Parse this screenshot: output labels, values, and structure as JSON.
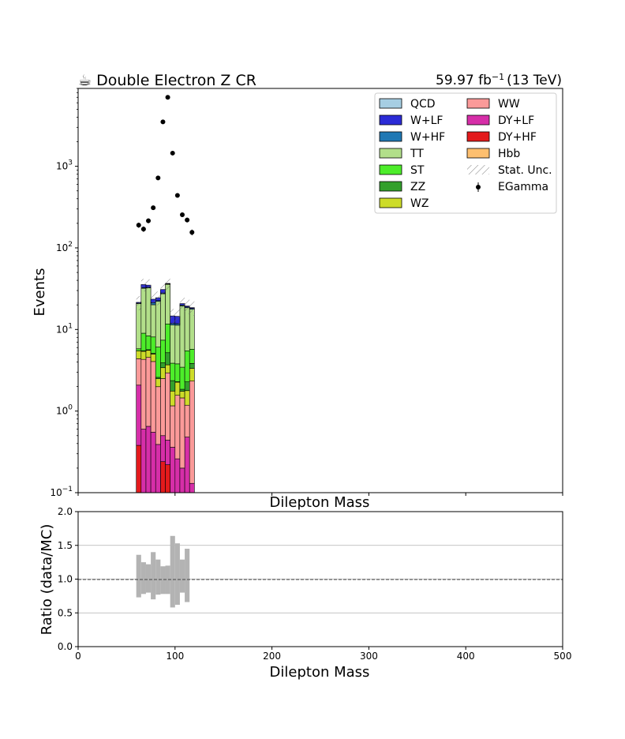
{
  "chart_data": {
    "type": "bar",
    "title": "☕ Double Electron Z CR",
    "lumi_label": "59.97 fb",
    "lumi_sup": "−1",
    "lumi_energy": "(13 TeV)",
    "main_panel": {
      "ylabel": "Events",
      "xlabel": "Dilepton Mass",
      "yscale": "log",
      "ylim": [
        0.1,
        9000
      ],
      "xlim": [
        0,
        500
      ],
      "y_tick_labels": [
        {
          "base": "10",
          "exp": "−1",
          "value": 0.1
        },
        {
          "base": "10",
          "exp": "0",
          "value": 1
        },
        {
          "base": "10",
          "exp": "1",
          "value": 10
        },
        {
          "base": "10",
          "exp": "2",
          "value": 100
        },
        {
          "base": "10",
          "exp": "3",
          "value": 1000
        }
      ],
      "x_ticks": [
        0,
        100,
        200,
        300,
        400,
        500
      ],
      "bin_edges": [
        60,
        65,
        70,
        75,
        80,
        85,
        90,
        95,
        100,
        105,
        110,
        115,
        120
      ],
      "stack": [
        {
          "name": "DY+HF",
          "color": "#e31a1c",
          "values": [
            0.38,
            0.1,
            0.1,
            0.1,
            0.1,
            0.24,
            0.22,
            0.1,
            0.1,
            0.1,
            0.1,
            0.1
          ]
        },
        {
          "name": "DY+LF",
          "color": "#d62ea8",
          "values": [
            1.7,
            0.5,
            0.55,
            0.45,
            0.29,
            0.26,
            0.22,
            0.26,
            0.16,
            0.1,
            0.38,
            0.03
          ]
        },
        {
          "name": "WW",
          "color": "#fb9a99",
          "values": [
            2.3,
            3.7,
            3.9,
            3.5,
            1.6,
            2.0,
            2.5,
            0.8,
            1.3,
            1.25,
            0.7,
            2.2
          ]
        },
        {
          "name": "WZ",
          "color": "#cddc29",
          "values": [
            1.1,
            1.1,
            1.0,
            0.95,
            0.5,
            0.9,
            0.75,
            0.6,
            0.7,
            0.3,
            0.6,
            1.0
          ]
        },
        {
          "name": "ZZ",
          "color": "#33a02c",
          "values": [
            0.02,
            0.1,
            0.1,
            0.1,
            0.1,
            0.5,
            1.5,
            0.6,
            0.03,
            0.1,
            0.5,
            0.5
          ]
        },
        {
          "name": "ST",
          "color": "#4ded2a",
          "values": [
            0.3,
            3.5,
            2.7,
            3.0,
            3.5,
            3.5,
            6.5,
            1.5,
            1.5,
            1.6,
            3.2,
            1.9
          ]
        },
        {
          "name": "TT",
          "color": "#b2df8a",
          "values": [
            15.0,
            23.0,
            24.0,
            12.0,
            16.0,
            20.0,
            24.0,
            7.5,
            7.5,
            16.0,
            13.0,
            12.0
          ]
        },
        {
          "name": "W+HF",
          "color": "#1f78b4",
          "values": [
            0.2,
            0.6,
            0.6,
            1.2,
            0.5,
            0.6,
            0.5,
            0.5,
            0.5,
            0.5,
            0.4,
            0.4
          ]
        },
        {
          "name": "W+LF",
          "color": "#2b2bd6",
          "values": [
            0.5,
            2.9,
            2.0,
            2.2,
            1.9,
            2.9,
            0.5,
            2.8,
            2.7,
            0.8,
            0.5,
            0.4
          ]
        },
        {
          "name": "QCD",
          "color": "#a6cee3",
          "values": [
            0.0,
            0.0,
            0.0,
            0.0,
            0.0,
            0.0,
            0.0,
            0.0,
            0.0,
            0.0,
            0.0,
            0.0
          ]
        },
        {
          "name": "Hbb",
          "color": "#fdbf6f",
          "values": [
            0.0,
            0.0,
            0.0,
            0.0,
            0.0,
            0.0,
            0.0,
            0.0,
            0.0,
            0.0,
            0.0,
            0.0
          ]
        }
      ],
      "data": {
        "name": "EGamma",
        "x": [
          62.5,
          67.5,
          72.5,
          77.5,
          82.5,
          87.5,
          92.5,
          97.5,
          102.5,
          107.5,
          112.5,
          117.5
        ],
        "y": [
          190,
          170,
          215,
          310,
          720,
          3500,
          7000,
          1450,
          440,
          255,
          220,
          155
        ]
      },
      "stat_unc_label": "Stat. Unc.",
      "legend_placement": "top-right",
      "legend_order": [
        "QCD",
        "WW",
        "W+LF",
        "DY+LF",
        "W+HF",
        "DY+HF",
        "TT",
        "Hbb",
        "ST",
        "Stat. Unc.",
        "ZZ",
        "EGamma",
        "WZ"
      ]
    },
    "ratio_panel": {
      "ylabel": "Ratio (data/MC)",
      "xlabel": "Dilepton Mass",
      "ylim": [
        0.0,
        2.0
      ],
      "xlim": [
        0,
        500
      ],
      "y_ticks": [
        "0.0",
        "0.5",
        "1.0",
        "1.5",
        "2.0"
      ],
      "x_ticks": [
        "0",
        "100",
        "200",
        "300",
        "400",
        "500"
      ],
      "gridlines": [
        0.5,
        1.0,
        1.5
      ],
      "unc_low": [
        0.73,
        0.78,
        0.8,
        0.7,
        0.77,
        0.78,
        0.78,
        0.58,
        0.62,
        0.8,
        0.66
      ],
      "unc_high": [
        1.36,
        1.25,
        1.22,
        1.4,
        1.29,
        1.19,
        1.2,
        1.64,
        1.53,
        1.29,
        1.45
      ],
      "bin_edges": [
        60,
        65,
        70,
        75,
        80,
        85,
        90,
        95,
        100,
        105,
        110,
        115
      ]
    }
  }
}
